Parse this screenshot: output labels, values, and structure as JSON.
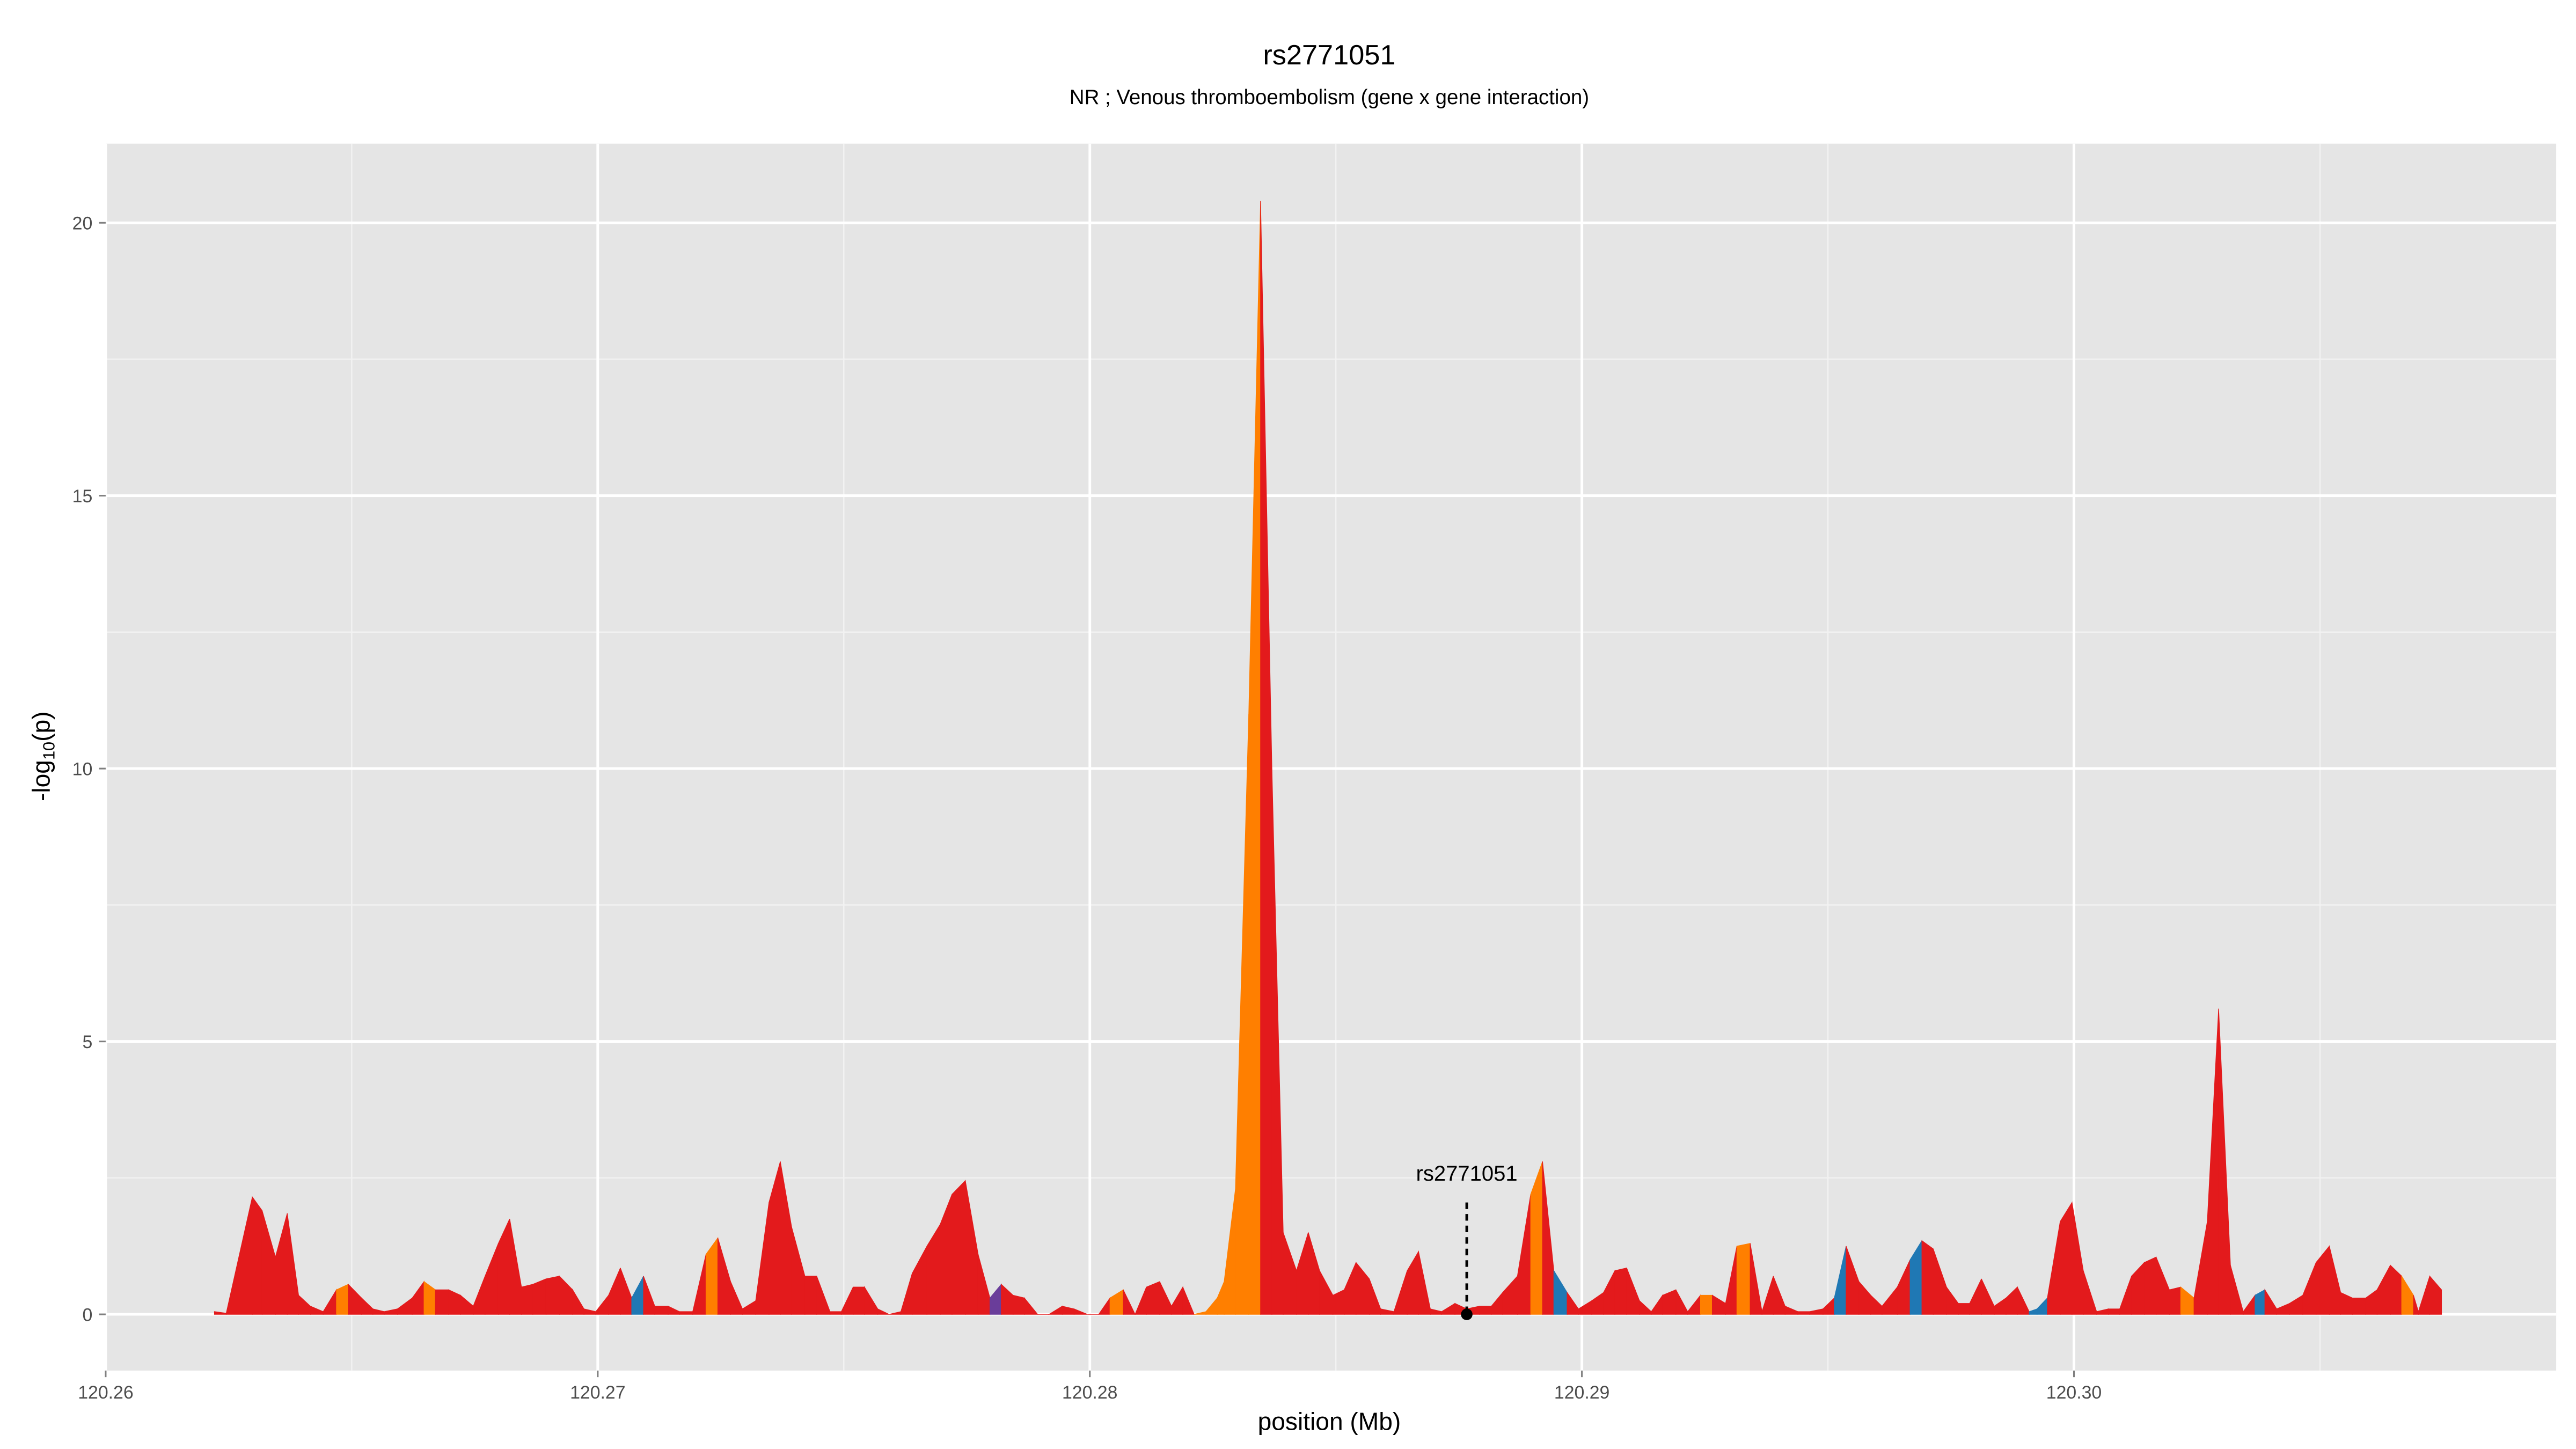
{
  "chart_data": {
    "type": "area",
    "title": "rs2771051",
    "subtitle": "NR ; Venous thromboembolism (gene x gene interaction)",
    "xlabel": "position (Mb)",
    "ylabel": "-log10(p)",
    "ylabel_main": "-log",
    "ylabel_sub": "10",
    "ylabel_tail": "(p)",
    "xlim": [
      120.26,
      120.3098
    ],
    "ylim": [
      -1.03,
      21.45
    ],
    "xticks": [
      120.26,
      120.27,
      120.28,
      120.29,
      120.3
    ],
    "xtick_labels": [
      "120.26",
      "120.27",
      "120.28",
      "120.29",
      "120.30"
    ],
    "yticks": [
      0,
      5,
      10,
      15,
      20
    ],
    "ytick_labels": [
      "0",
      "5",
      "10",
      "15",
      "20"
    ],
    "grid": true,
    "background": "#E5E5E5",
    "colors": {
      "r": "#E31A1C",
      "o": "#FF7F00",
      "b": "#1F78B4",
      "p": "#6A3D9A"
    },
    "annotation": {
      "label": "rs2771051",
      "x": 120.28766,
      "y": 0.0
    },
    "points": [
      [
        120.26221,
        0.05,
        "r"
      ],
      [
        120.26245,
        0.02,
        "r"
      ],
      [
        120.26298,
        2.15,
        "r"
      ],
      [
        120.26318,
        1.9,
        "r"
      ],
      [
        120.26345,
        1.05,
        "r"
      ],
      [
        120.26369,
        1.85,
        "r"
      ],
      [
        120.26392,
        0.35,
        "r"
      ],
      [
        120.26416,
        0.15,
        "r"
      ],
      [
        120.26442,
        0.05,
        "r"
      ],
      [
        120.26469,
        0.45,
        "o"
      ],
      [
        120.26493,
        0.55,
        "r"
      ],
      [
        120.2652,
        0.3,
        "r"
      ],
      [
        120.26543,
        0.1,
        "r"
      ],
      [
        120.26566,
        0.05,
        "r"
      ],
      [
        120.26593,
        0.1,
        "r"
      ],
      [
        120.26623,
        0.3,
        "r"
      ],
      [
        120.26647,
        0.6,
        "o"
      ],
      [
        120.2667,
        0.45,
        "r"
      ],
      [
        120.26697,
        0.45,
        "r"
      ],
      [
        120.26721,
        0.35,
        "r"
      ],
      [
        120.26747,
        0.15,
        "r"
      ],
      [
        120.26771,
        0.7,
        "r"
      ],
      [
        120.26798,
        1.3,
        "r"
      ],
      [
        120.26821,
        1.75,
        "r"
      ],
      [
        120.26845,
        0.5,
        "r"
      ],
      [
        120.26868,
        0.55,
        "r"
      ],
      [
        120.26895,
        0.65,
        "r"
      ],
      [
        120.26922,
        0.7,
        "r"
      ],
      [
        120.26949,
        0.45,
        "r"
      ],
      [
        120.26972,
        0.1,
        "r"
      ],
      [
        120.26996,
        0.05,
        "r"
      ],
      [
        120.27022,
        0.35,
        "r"
      ],
      [
        120.27046,
        0.85,
        "r"
      ],
      [
        120.27069,
        0.3,
        "b"
      ],
      [
        120.27093,
        0.7,
        "r"
      ],
      [
        120.27116,
        0.15,
        "r"
      ],
      [
        120.27143,
        0.15,
        "r"
      ],
      [
        120.27166,
        0.05,
        "r"
      ],
      [
        120.27193,
        0.05,
        "r"
      ],
      [
        120.2722,
        1.1,
        "o"
      ],
      [
        120.27244,
        1.4,
        "r"
      ],
      [
        120.2727,
        0.6,
        "r"
      ],
      [
        120.27294,
        0.1,
        "r"
      ],
      [
        120.27321,
        0.25,
        "r"
      ],
      [
        120.27348,
        2.05,
        "r"
      ],
      [
        120.27371,
        2.8,
        "r"
      ],
      [
        120.27394,
        1.6,
        "r"
      ],
      [
        120.27421,
        0.7,
        "r"
      ],
      [
        120.27445,
        0.7,
        "r"
      ],
      [
        120.27472,
        0.05,
        "r"
      ],
      [
        120.27495,
        0.05,
        "r"
      ],
      [
        120.27519,
        0.5,
        "r"
      ],
      [
        120.27542,
        0.5,
        "r"
      ],
      [
        120.27569,
        0.1,
        "r"
      ],
      [
        120.27592,
        0.0,
        "r"
      ],
      [
        120.27616,
        0.05,
        "r"
      ],
      [
        120.27639,
        0.75,
        "r"
      ],
      [
        120.27669,
        1.25,
        "r"
      ],
      [
        120.27696,
        1.65,
        "r"
      ],
      [
        120.2772,
        2.2,
        "r"
      ],
      [
        120.27747,
        2.45,
        "r"
      ],
      [
        120.27773,
        1.1,
        "r"
      ],
      [
        120.27797,
        0.3,
        "p"
      ],
      [
        120.2782,
        0.55,
        "r"
      ],
      [
        120.27844,
        0.35,
        "r"
      ],
      [
        120.27867,
        0.3,
        "r"
      ],
      [
        120.27894,
        0.0,
        "r"
      ],
      [
        120.27917,
        0.0,
        "r"
      ],
      [
        120.27944,
        0.15,
        "r"
      ],
      [
        120.27968,
        0.1,
        "r"
      ],
      [
        120.27995,
        0.0,
        "r"
      ],
      [
        120.28018,
        0.0,
        "r"
      ],
      [
        120.28041,
        0.3,
        "o"
      ],
      [
        120.28068,
        0.45,
        "r"
      ],
      [
        120.28092,
        0.0,
        "r"
      ],
      [
        120.28115,
        0.5,
        "r"
      ],
      [
        120.28142,
        0.6,
        "r"
      ],
      [
        120.28166,
        0.15,
        "r"
      ],
      [
        120.28189,
        0.5,
        "r"
      ],
      [
        120.28212,
        0.0,
        "o"
      ],
      [
        120.28236,
        0.05,
        "o"
      ],
      [
        120.28259,
        0.3,
        "o"
      ],
      [
        120.28273,
        0.6,
        "o"
      ],
      [
        120.28296,
        2.3,
        "o"
      ],
      [
        120.28323,
        11.0,
        "o"
      ],
      [
        120.28347,
        20.4,
        "r"
      ],
      [
        120.2837,
        10.0,
        "r"
      ],
      [
        120.28393,
        1.5,
        "r"
      ],
      [
        120.2842,
        0.8,
        "r"
      ],
      [
        120.28444,
        1.5,
        "r"
      ],
      [
        120.28467,
        0.8,
        "r"
      ],
      [
        120.28494,
        0.35,
        "r"
      ],
      [
        120.28517,
        0.45,
        "r"
      ],
      [
        120.28541,
        0.95,
        "r"
      ],
      [
        120.28568,
        0.65,
        "r"
      ],
      [
        120.28591,
        0.1,
        "r"
      ],
      [
        120.28618,
        0.05,
        "r"
      ],
      [
        120.28645,
        0.8,
        "r"
      ],
      [
        120.28668,
        1.15,
        "r"
      ],
      [
        120.28692,
        0.1,
        "r"
      ],
      [
        120.28715,
        0.05,
        "r"
      ],
      [
        120.28742,
        0.2,
        "r"
      ],
      [
        120.28766,
        0.1,
        "r"
      ],
      [
        120.28792,
        0.15,
        "r"
      ],
      [
        120.28816,
        0.15,
        "r"
      ],
      [
        120.28839,
        0.4,
        "r"
      ],
      [
        120.28869,
        0.7,
        "r"
      ],
      [
        120.28896,
        2.2,
        "o"
      ],
      [
        120.2892,
        2.8,
        "r"
      ],
      [
        120.28943,
        0.8,
        "b"
      ],
      [
        120.2897,
        0.4,
        "r"
      ],
      [
        120.28993,
        0.1,
        "r"
      ],
      [
        120.2902,
        0.25,
        "r"
      ],
      [
        120.29044,
        0.4,
        "r"
      ],
      [
        120.29067,
        0.8,
        "r"
      ],
      [
        120.29091,
        0.85,
        "r"
      ],
      [
        120.29117,
        0.25,
        "r"
      ],
      [
        120.29141,
        0.05,
        "r"
      ],
      [
        120.29164,
        0.35,
        "r"
      ],
      [
        120.29191,
        0.45,
        "r"
      ],
      [
        120.29215,
        0.05,
        "r"
      ],
      [
        120.29241,
        0.35,
        "o"
      ],
      [
        120.29265,
        0.35,
        "r"
      ],
      [
        120.29292,
        0.2,
        "r"
      ],
      [
        120.29315,
        1.25,
        "o"
      ],
      [
        120.29342,
        1.3,
        "r"
      ],
      [
        120.29366,
        0.05,
        "r"
      ],
      [
        120.29389,
        0.7,
        "r"
      ],
      [
        120.29413,
        0.15,
        "r"
      ],
      [
        120.29439,
        0.05,
        "r"
      ],
      [
        120.29463,
        0.05,
        "r"
      ],
      [
        120.2949,
        0.1,
        "r"
      ],
      [
        120.29513,
        0.3,
        "b"
      ],
      [
        120.29537,
        1.25,
        "r"
      ],
      [
        120.29563,
        0.6,
        "r"
      ],
      [
        120.29587,
        0.35,
        "r"
      ],
      [
        120.2961,
        0.15,
        "r"
      ],
      [
        120.29641,
        0.5,
        "r"
      ],
      [
        120.29667,
        1.0,
        "b"
      ],
      [
        120.29691,
        1.35,
        "r"
      ],
      [
        120.29714,
        1.2,
        "r"
      ],
      [
        120.29741,
        0.5,
        "r"
      ],
      [
        120.29765,
        0.2,
        "r"
      ],
      [
        120.29788,
        0.2,
        "r"
      ],
      [
        120.29812,
        0.65,
        "r"
      ],
      [
        120.29838,
        0.15,
        "r"
      ],
      [
        120.29862,
        0.3,
        "r"
      ],
      [
        120.29885,
        0.5,
        "r"
      ],
      [
        120.29909,
        0.05,
        "b"
      ],
      [
        120.29925,
        0.1,
        "b"
      ],
      [
        120.29946,
        0.3,
        "r"
      ],
      [
        120.29972,
        1.7,
        "r"
      ],
      [
        120.29996,
        2.05,
        "r"
      ],
      [
        120.30019,
        0.8,
        "r"
      ],
      [
        120.30046,
        0.05,
        "r"
      ],
      [
        120.3007,
        0.1,
        "r"
      ],
      [
        120.30093,
        0.1,
        "r"
      ],
      [
        120.30117,
        0.7,
        "r"
      ],
      [
        120.30143,
        0.95,
        "r"
      ],
      [
        120.30167,
        1.05,
        "r"
      ],
      [
        120.30194,
        0.45,
        "r"
      ],
      [
        120.30217,
        0.5,
        "o"
      ],
      [
        120.30244,
        0.3,
        "r"
      ],
      [
        120.30271,
        1.7,
        "r"
      ],
      [
        120.30294,
        5.6,
        "r"
      ],
      [
        120.30318,
        0.9,
        "r"
      ],
      [
        120.30344,
        0.05,
        "r"
      ],
      [
        120.30368,
        0.35,
        "b"
      ],
      [
        120.30388,
        0.45,
        "r"
      ],
      [
        120.30412,
        0.1,
        "r"
      ],
      [
        120.30438,
        0.2,
        "r"
      ],
      [
        120.30465,
        0.35,
        "r"
      ],
      [
        120.30492,
        0.95,
        "r"
      ],
      [
        120.30519,
        1.25,
        "r"
      ],
      [
        120.30542,
        0.4,
        "r"
      ],
      [
        120.30566,
        0.3,
        "r"
      ],
      [
        120.30593,
        0.3,
        "r"
      ],
      [
        120.30616,
        0.45,
        "r"
      ],
      [
        120.30643,
        0.9,
        "r"
      ],
      [
        120.30666,
        0.7,
        "o"
      ],
      [
        120.3069,
        0.35,
        "r"
      ],
      [
        120.307,
        0.05,
        "r"
      ],
      [
        120.30723,
        0.7,
        "r"
      ],
      [
        120.30747,
        0.45,
        "r"
      ]
    ]
  }
}
